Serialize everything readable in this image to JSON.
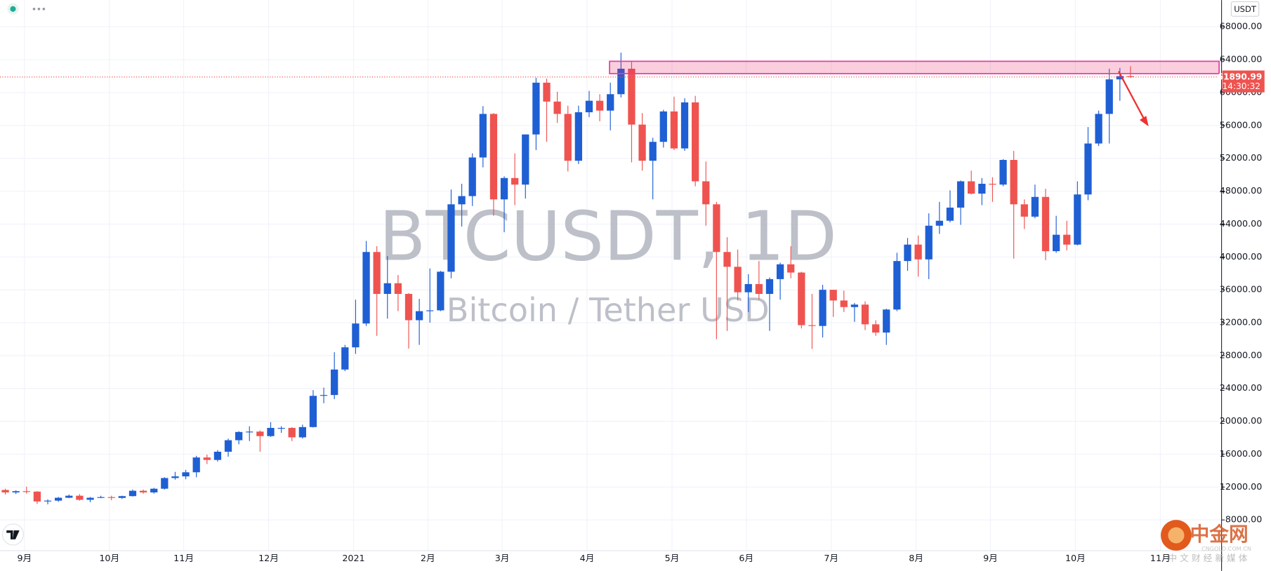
{
  "chart_data": {
    "type": "candlestick",
    "title": "BTCUSDT, 1D",
    "subtitle": "Bitcoin / Tether USD",
    "currency": "USDT",
    "last_price": 61890.99,
    "countdown": "14:30:32",
    "zone": {
      "low": 62300,
      "high": 63800
    },
    "up_color": "#1f5fd4",
    "down_color": "#ef5350",
    "grid": true,
    "ylim": [
      4260,
      71250
    ],
    "yticks": [
      {
        "value": 8000,
        "label": "8000.00"
      },
      {
        "value": 12000,
        "label": "12000.00"
      },
      {
        "value": 16000,
        "label": "16000.00"
      },
      {
        "value": 20000,
        "label": "20000.00"
      },
      {
        "value": 24000,
        "label": "24000.00"
      },
      {
        "value": 28000,
        "label": "28000.00"
      },
      {
        "value": 32000,
        "label": "32000.00"
      },
      {
        "value": 36000,
        "label": "36000.00"
      },
      {
        "value": 40000,
        "label": "40000.00"
      },
      {
        "value": 44000,
        "label": "44000.00"
      },
      {
        "value": 48000,
        "label": "48000.00"
      },
      {
        "value": 52000,
        "label": "52000.00"
      },
      {
        "value": 56000,
        "label": "56000.00"
      },
      {
        "value": 60000,
        "label": "60000.00"
      },
      {
        "value": 64000,
        "label": "64000.00"
      },
      {
        "value": 68000,
        "label": "68000.00"
      }
    ],
    "categories": [
      null,
      null,
      "9月",
      null,
      null,
      null,
      null,
      null,
      null,
      null,
      "10月",
      null,
      null,
      null,
      null,
      null,
      null,
      "11月",
      null,
      null,
      null,
      null,
      null,
      null,
      null,
      "12月",
      null,
      null,
      null,
      null,
      null,
      null,
      null,
      "2021",
      null,
      null,
      null,
      null,
      null,
      null,
      "2月",
      null,
      null,
      null,
      null,
      null,
      null,
      "3月",
      null,
      null,
      null,
      null,
      null,
      null,
      null,
      "4月",
      null,
      null,
      null,
      null,
      null,
      null,
      null,
      "5月",
      null,
      null,
      null,
      null,
      null,
      null,
      "6月",
      null,
      null,
      null,
      null,
      null,
      null,
      null,
      "7月",
      null,
      null,
      null,
      null,
      null,
      null,
      null,
      "8月",
      null,
      null,
      null,
      null,
      null,
      null,
      "9月",
      null,
      null,
      null,
      null,
      null,
      null,
      null,
      "10月",
      null,
      null,
      null,
      null,
      null,
      null,
      null,
      "11月",
      null,
      null,
      null,
      null,
      null
    ],
    "open": [
      11650,
      11350,
      11500,
      11450,
      10250,
      10350,
      10700,
      10950,
      10450,
      10700,
      10780,
      10680,
      10900,
      11550,
      11350,
      11800,
      13100,
      13300,
      13800,
      15600,
      15300,
      16300,
      17700,
      18700,
      18750,
      18200,
      19200,
      19200,
      18050,
      19300,
      23100,
      23200,
      26300,
      29000,
      31900,
      40600,
      35500,
      36800,
      35500,
      32300,
      33400,
      33500,
      38200,
      46400,
      47400,
      52100,
      57400,
      47000,
      49600,
      48800,
      54900,
      61200,
      58900,
      57400,
      51700,
      57600,
      59000,
      57800,
      59800,
      62900,
      56100,
      51700,
      54000,
      57700,
      53200,
      58800,
      49200,
      46400,
      40600,
      38800,
      35700,
      36700,
      35500,
      37300,
      39100,
      38100,
      31700,
      31600,
      36000,
      34700,
      33900,
      34200,
      31800,
      30800,
      33600,
      39500,
      41500,
      39700,
      43800,
      44400,
      46000,
      49200,
      47700,
      48900,
      48800,
      51800,
      46400,
      44900,
      47300,
      40700,
      42700,
      41500,
      47600,
      53800,
      57400,
      61600,
      62000,
      null,
      null,
      null,
      null,
      null,
      null,
      null,
      null
    ],
    "high": [
      11800,
      11600,
      12050,
      11500,
      10500,
      10800,
      11100,
      11150,
      10800,
      10950,
      10950,
      10950,
      11700,
      11700,
      11900,
      13200,
      13850,
      14100,
      15800,
      15950,
      16500,
      17900,
      18800,
      19400,
      18900,
      19900,
      19400,
      19300,
      19600,
      23800,
      24100,
      28400,
      29300,
      34800,
      41950,
      41300,
      40100,
      37800,
      35600,
      34900,
      38600,
      38300,
      48200,
      48900,
      52600,
      58350,
      57500,
      49800,
      52600,
      54900,
      61800,
      61700,
      60100,
      58400,
      58400,
      60200,
      59800,
      61200,
      64850,
      63800,
      57500,
      54500,
      57900,
      59500,
      59300,
      59600,
      51600,
      46700,
      42400,
      40900,
      37900,
      39500,
      37500,
      39300,
      41300,
      38200,
      35500,
      36600,
      36000,
      35900,
      34400,
      34600,
      32300,
      33700,
      40500,
      42300,
      42600,
      45300,
      46700,
      48100,
      49300,
      50500,
      49600,
      49700,
      51900,
      52900,
      47000,
      48800,
      48300,
      45000,
      44400,
      49200,
      55800,
      57800,
      62900,
      63000,
      63200,
      null,
      null,
      null,
      null,
      null,
      null,
      null,
      null
    ],
    "low": [
      11100,
      11150,
      11200,
      9950,
      9900,
      10200,
      10650,
      10350,
      10150,
      10650,
      10400,
      10550,
      10850,
      11200,
      11200,
      11700,
      12900,
      12950,
      13200,
      14800,
      15100,
      15700,
      17200,
      17600,
      16300,
      18100,
      18600,
      17600,
      17900,
      19250,
      22200,
      22700,
      26100,
      28200,
      31600,
      30400,
      32500,
      33400,
      28850,
      29300,
      32000,
      33400,
      37400,
      43700,
      46200,
      50900,
      45000,
      43000,
      46300,
      47100,
      53000,
      54000,
      56300,
      50400,
      51300,
      57000,
      56500,
      55400,
      59400,
      51500,
      50500,
      47000,
      53300,
      53000,
      52900,
      48600,
      43800,
      30000,
      31000,
      34700,
      33300,
      34800,
      31000,
      34800,
      37400,
      31300,
      28800,
      30200,
      32700,
      33300,
      32100,
      31100,
      30400,
      29300,
      33400,
      38300,
      37600,
      37300,
      42800,
      44200,
      43900,
      47600,
      46300,
      46700,
      48600,
      39800,
      43400,
      44700,
      39600,
      40500,
      40800,
      41400,
      46900,
      53500,
      53800,
      59000,
      61800,
      null,
      null,
      null,
      null,
      null,
      null,
      null,
      null
    ],
    "close": [
      11350,
      11500,
      11450,
      10250,
      10350,
      10700,
      10950,
      10450,
      10700,
      10780,
      10680,
      10900,
      11550,
      11350,
      11800,
      13100,
      13300,
      13800,
      15600,
      15300,
      16300,
      17700,
      18700,
      18750,
      18200,
      19200,
      19200,
      18050,
      19300,
      23100,
      23200,
      26300,
      29000,
      31900,
      40600,
      35500,
      36800,
      35500,
      32300,
      33400,
      33500,
      38200,
      46400,
      47400,
      52100,
      57400,
      47000,
      49600,
      48800,
      54900,
      61200,
      58900,
      57400,
      51700,
      57600,
      59000,
      57800,
      59800,
      62900,
      56100,
      51700,
      54000,
      57700,
      53200,
      58800,
      49200,
      46400,
      40600,
      38800,
      35700,
      36700,
      35500,
      37300,
      39100,
      38100,
      31700,
      31600,
      36000,
      34700,
      33900,
      34200,
      31800,
      30800,
      33600,
      39500,
      41500,
      39700,
      43800,
      44400,
      46000,
      49200,
      47700,
      48900,
      48800,
      51800,
      46400,
      44900,
      47300,
      40700,
      42700,
      41500,
      47600,
      53800,
      57400,
      61600,
      62000,
      61890.99,
      null,
      null,
      null,
      null,
      null,
      null,
      null,
      null
    ]
  },
  "logo": {
    "name": "中金网",
    "domain": "CNGOLD.COM.CN",
    "tagline": "中 文 财 经 新 媒 体"
  }
}
